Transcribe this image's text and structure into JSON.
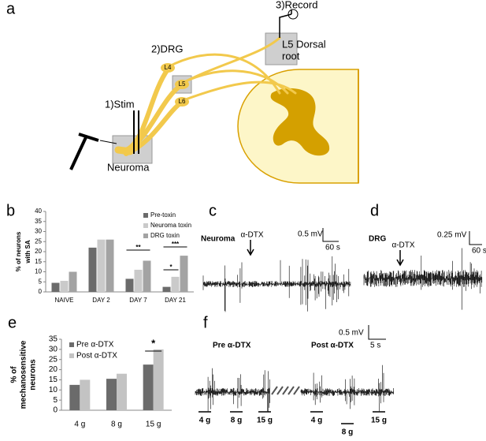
{
  "panel_a": {
    "letter": "a",
    "record": "3)Record",
    "root": [
      "L5 Dorsal",
      "root"
    ],
    "drg": "2)DRG",
    "ganglia": [
      "L4",
      "L5",
      "L6"
    ],
    "stim": "1)Stim",
    "neuroma": "Neuroma"
  },
  "chart_data": [
    {
      "type": "bar",
      "letter": "b",
      "ylabel": [
        "% of neurons",
        "with SA"
      ],
      "categories": [
        "NAIVE",
        "DAY 2",
        "DAY 7",
        "DAY 21"
      ],
      "series": [
        {
          "name": "Pre-toxin",
          "color": "#6b6b6b",
          "values": [
            4.5,
            22,
            6.5,
            2.5
          ]
        },
        {
          "name": "Neuroma toxin",
          "color": "#cacaca",
          "values": [
            5.5,
            26,
            11,
            7.5
          ]
        },
        {
          "name": "DRG toxin",
          "color": "#a3a3a3",
          "values": [
            10,
            26,
            15.5,
            18
          ]
        }
      ],
      "ylim": [
        0,
        40
      ],
      "yticks": [
        0,
        5,
        10,
        15,
        20,
        25,
        30,
        35,
        40
      ],
      "annotations": [
        "**",
        "*",
        "***"
      ]
    },
    {
      "type": "bar",
      "letter": "e",
      "ylabel": [
        "% of",
        "mechanosensitive",
        "neurons"
      ],
      "categories": [
        "4 g",
        "8 g",
        "15 g"
      ],
      "series": [
        {
          "name": "Pre α-DTX",
          "color": "#6b6b6b",
          "values": [
            12.5,
            15.5,
            22.5
          ]
        },
        {
          "name": "Post α-DTX",
          "color": "#c3c3c3",
          "values": [
            15,
            18,
            30
          ]
        }
      ],
      "ylim": [
        0,
        35
      ],
      "yticks": [
        0,
        5,
        10,
        15,
        20,
        25,
        30,
        35
      ],
      "annotations": [
        "*"
      ]
    }
  ],
  "panel_c": {
    "letter": "c",
    "site": "Neuroma",
    "drug": "α-DTX",
    "scale_v": "0.5 mV",
    "scale_t": "60 s"
  },
  "panel_d": {
    "letter": "d",
    "site": "DRG",
    "drug": "α-DTX",
    "scale_v": "0.25 mV",
    "scale_t": "60 s"
  },
  "panel_f": {
    "letter": "f",
    "pre": "Pre α-DTX",
    "post": "Post α-DTX",
    "scale_v": "0.5 mV",
    "scale_t": "5 s",
    "pre_stimuli": [
      "4 g",
      "8 g",
      "15 g"
    ],
    "post_stimuli": [
      "4 g",
      "8 g",
      "15 g"
    ]
  }
}
